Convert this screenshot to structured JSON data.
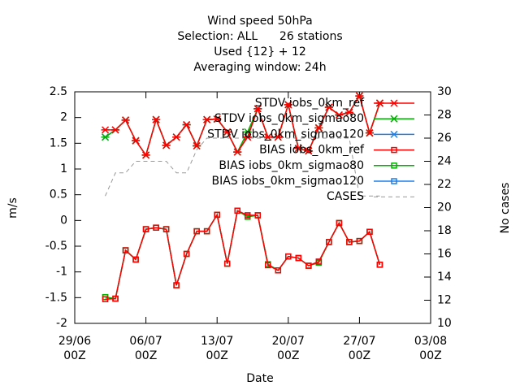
{
  "chart_data": {
    "type": "line",
    "title": [
      "Wind speed 50hPa",
      "Selection: ALL      26 stations",
      "Used {12} + 12",
      "Averaging window: 24h"
    ],
    "x_label": "Date",
    "y_label": "m/s",
    "y2_label": "No cases",
    "x": [
      3,
      4,
      5,
      6,
      7,
      8,
      9,
      10,
      11,
      12,
      13,
      14,
      15,
      16,
      17,
      18,
      19,
      20,
      21,
      22,
      23,
      24,
      25,
      26,
      27,
      28,
      29,
      30
    ],
    "xlim": [
      0,
      35
    ],
    "xticks": [
      {
        "value": 0,
        "label": "29/06\n00Z"
      },
      {
        "value": 7,
        "label": "06/07\n00Z"
      },
      {
        "value": 14,
        "label": "13/07\n00Z"
      },
      {
        "value": 21,
        "label": "20/07\n00Z"
      },
      {
        "value": 28,
        "label": "27/07\n00Z"
      },
      {
        "value": 35,
        "label": "03/08\n00Z"
      }
    ],
    "ylim": [
      -2,
      2.5
    ],
    "yticks": [
      -2,
      -1.5,
      -1,
      -0.5,
      0,
      0.5,
      1,
      1.5,
      2,
      2.5
    ],
    "y2lim": [
      10,
      30
    ],
    "y2ticks": [
      10,
      12,
      14,
      16,
      18,
      20,
      22,
      24,
      26,
      28,
      30
    ],
    "series": [
      {
        "name": "STDV iobs_0km_ref",
        "color": "#ff0000",
        "marker": "star",
        "values": [
          1.76,
          1.76,
          1.95,
          1.55,
          1.27,
          1.96,
          1.46,
          1.62,
          1.86,
          1.45,
          1.96,
          1.97,
          1.72,
          1.33,
          1.62,
          2.17,
          1.62,
          1.62,
          2.25,
          1.4,
          1.35,
          1.8,
          2.2,
          2.05,
          2.1,
          2.42,
          1.7,
          2.28
        ]
      },
      {
        "name": "STDV iobs_0km_sigmao80",
        "color": "#00b000",
        "marker": "star",
        "values": [
          1.62,
          1.76,
          1.95,
          1.55,
          1.27,
          1.96,
          1.46,
          1.62,
          1.86,
          1.45,
          1.96,
          1.97,
          1.72,
          1.33,
          1.72,
          2.17,
          1.62,
          1.62,
          2.25,
          1.4,
          1.35,
          1.8,
          2.2,
          2.05,
          2.1,
          2.42,
          1.7,
          2.28
        ]
      },
      {
        "name": "STDV iobs_0km_sigmao120",
        "color": "#1f7fe8",
        "marker": "star",
        "values": [
          1.62,
          1.76,
          1.95,
          1.55,
          1.27,
          1.96,
          1.46,
          1.62,
          1.86,
          1.45,
          1.96,
          1.97,
          1.72,
          1.33,
          1.62,
          2.17,
          1.62,
          1.62,
          2.25,
          1.4,
          1.35,
          1.8,
          2.2,
          2.05,
          2.1,
          2.42,
          1.7,
          2.28
        ]
      },
      {
        "name": "BIAS iobs_0km_ref",
        "color": "#ff0000",
        "marker": "square",
        "values": [
          -1.53,
          -1.52,
          -0.58,
          -0.76,
          -0.17,
          -0.14,
          -0.17,
          -1.26,
          -0.65,
          -0.21,
          -0.21,
          0.11,
          -0.84,
          0.19,
          0.1,
          0.1,
          -0.87,
          -0.97,
          -0.7,
          -0.73,
          -0.88,
          -0.8,
          -0.42,
          -0.05,
          -0.42,
          -0.4,
          -0.22,
          -0.86
        ]
      },
      {
        "name": "BIAS iobs_0km_sigmao80",
        "color": "#00b000",
        "marker": "square",
        "values": [
          -1.49,
          -1.52,
          -0.58,
          -0.76,
          -0.17,
          -0.14,
          -0.17,
          -1.26,
          -0.65,
          -0.21,
          -0.21,
          0.11,
          -0.84,
          0.19,
          0.07,
          0.1,
          -0.85,
          -0.97,
          -0.7,
          -0.73,
          -0.88,
          -0.82,
          -0.42,
          -0.05,
          -0.42,
          -0.4,
          -0.22,
          -0.86
        ]
      },
      {
        "name": "BIAS iobs_0km_sigmao120",
        "color": "#1f7fe8",
        "marker": "square",
        "values": [
          -1.49,
          -1.52,
          -0.58,
          -0.76,
          -0.17,
          -0.14,
          -0.17,
          -1.26,
          -0.65,
          -0.21,
          -0.21,
          0.11,
          -0.84,
          0.19,
          0.1,
          0.1,
          -0.85,
          -0.97,
          -0.7,
          -0.73,
          -0.88,
          -0.8,
          -0.42,
          -0.05,
          -0.42,
          -0.4,
          -0.22,
          -0.86
        ]
      },
      {
        "name": "CASES",
        "color": "#999999",
        "dashed": true,
        "axis": "y2",
        "values": [
          21,
          23,
          23,
          24,
          24,
          24,
          24,
          23,
          23,
          25,
          26,
          26,
          26,
          26,
          26,
          26,
          26,
          26,
          26,
          26,
          26,
          26,
          26,
          26,
          26,
          21,
          21,
          21
        ]
      }
    ]
  }
}
